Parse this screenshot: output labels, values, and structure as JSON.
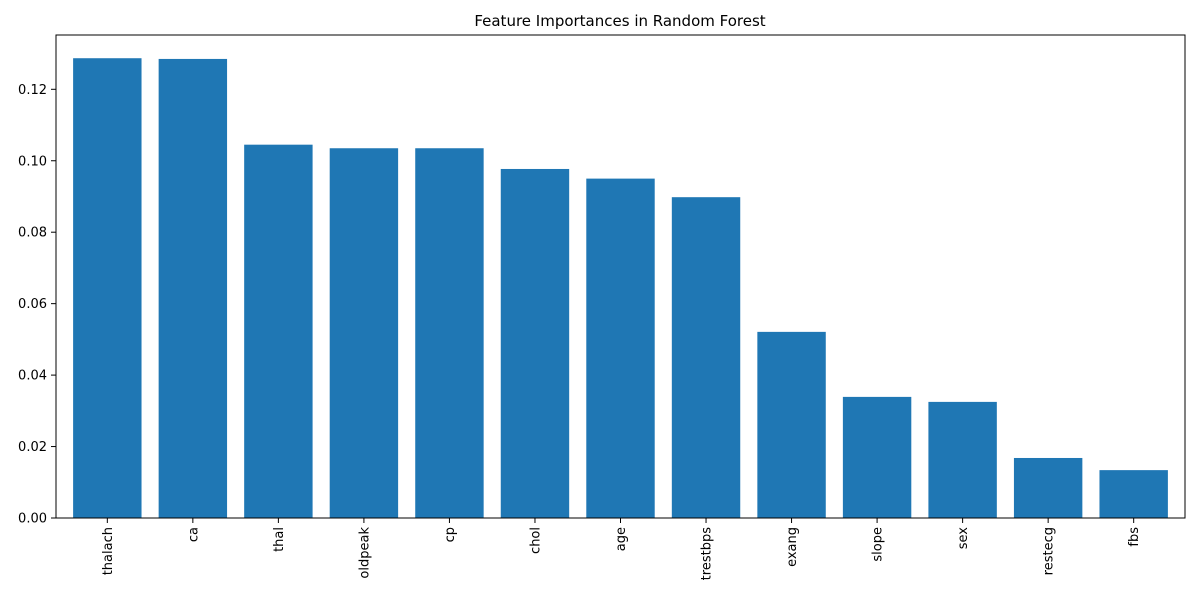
{
  "chart_data": {
    "type": "bar",
    "title": "Feature Importances in Random Forest",
    "xlabel": "",
    "ylabel": "",
    "categories": [
      "thalach",
      "ca",
      "thal",
      "oldpeak",
      "cp",
      "chol",
      "age",
      "trestbps",
      "exang",
      "slope",
      "sex",
      "restecg",
      "fbs"
    ],
    "values": [
      0.1287,
      0.1285,
      0.1045,
      0.1035,
      0.1035,
      0.0977,
      0.095,
      0.0898,
      0.0521,
      0.0339,
      0.0325,
      0.0168,
      0.0134
    ],
    "ylim": [
      0,
      0.1352
    ],
    "yticks": [
      0.0,
      0.02,
      0.04,
      0.06,
      0.08,
      0.1,
      0.12
    ],
    "ytick_labels": [
      "0.00",
      "0.02",
      "0.04",
      "0.06",
      "0.08",
      "0.10",
      "0.12"
    ],
    "grid": false,
    "legend": "none",
    "xtick_rotation": "vertical",
    "colors": {
      "bar": "#1f77b4",
      "axis": "#000000",
      "background": "#ffffff"
    }
  }
}
